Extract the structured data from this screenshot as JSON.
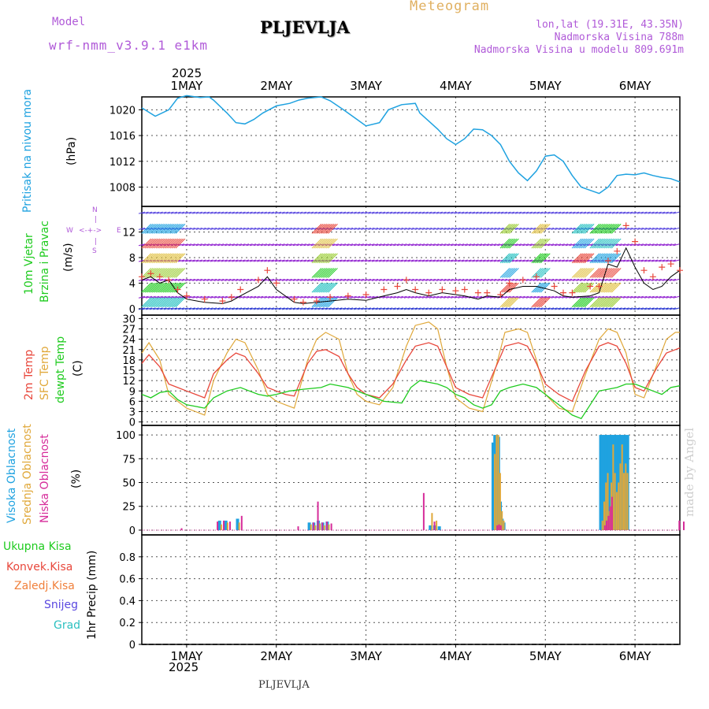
{
  "header": {
    "model_label": "Model",
    "model_name": "wrf-nmm_v3.9.1 e1km",
    "station": "PLJEVLJA",
    "meteogram_label": "Meteogram",
    "lonlat": "lon,lat (19.31E, 43.35N)",
    "elevation": "Nadmorska Visina 788m",
    "model_elevation": "Nadmorska Visina u modelu 809.691m",
    "year_top": "2025",
    "year_bottom": "2025",
    "footer_station": "PLJEVLJA",
    "watermark": "made by Angel"
  },
  "colors": {
    "pressure": "#1fa2e0",
    "temp2m": "#e8473b",
    "sfc": "#e0a83a",
    "dew": "#1ecb1e",
    "high_cloud": "#1fa2e0",
    "mid_cloud": "#e0a83a",
    "low_cloud": "#d62c9a",
    "wind_speed": "#000000",
    "gust": "#e8473b",
    "model_text": "#b05ad8",
    "meteogram_text": "#e0b060",
    "grid": "#555555"
  },
  "axis_labels": {
    "pressure": [
      "Pritisak na nivou mora",
      "(hPa)"
    ],
    "wind": [
      "10m Vjetar",
      "Brzina i Pravac",
      "(m/s)"
    ],
    "wind_compass": [
      "N",
      "W",
      "E",
      "S"
    ],
    "temp": [
      "2m Temp",
      "SFC Temp",
      "dewpt Temp",
      "(C)"
    ],
    "cloud": [
      "Visoka Oblacnost",
      "Srednja Oblacnost",
      "Niska Oblacnost",
      "(%)"
    ],
    "precip": [
      "Ukupna Kisa",
      "Konvek.Kisa",
      "Zaledj.Kisa",
      "Snijeg",
      "Grad",
      "1hr Precip (mm)"
    ]
  },
  "chart_data": [
    {
      "type": "line",
      "panel": "pressure",
      "x_unit": "days since 1 MAY 2025 00UTC",
      "x_categories": [
        "1MAY",
        "2MAY",
        "3MAY",
        "4MAY",
        "5MAY",
        "6MAY"
      ],
      "xlim": [
        -0.5,
        5.5
      ],
      "ylabel": "(hPa)",
      "ylim": [
        1005,
        1022
      ],
      "yticks": [
        1008,
        1012,
        1016,
        1020
      ],
      "series": [
        {
          "name": "Pritisak na nivou mora",
          "x": [
            -0.5,
            -0.35,
            -0.2,
            -0.1,
            0,
            0.15,
            0.25,
            0.3,
            0.45,
            0.55,
            0.65,
            0.75,
            0.85,
            1.0,
            1.15,
            1.25,
            1.35,
            1.5,
            1.6,
            1.75,
            1.9,
            2.0,
            2.15,
            2.25,
            2.4,
            2.55,
            2.6,
            2.8,
            2.9,
            3.0,
            3.1,
            3.2,
            3.3,
            3.4,
            3.5,
            3.6,
            3.7,
            3.8,
            3.9,
            4.0,
            4.1,
            4.2,
            4.3,
            4.4,
            4.5,
            4.6,
            4.7,
            4.8,
            4.9,
            5.0,
            5.1,
            5.2,
            5.3,
            5.4,
            5.5
          ],
          "y": [
            1020.3,
            1019.0,
            1020.0,
            1021.8,
            1022.2,
            1021.9,
            1022.0,
            1021.5,
            1019.5,
            1018.0,
            1017.8,
            1018.5,
            1019.5,
            1020.6,
            1021.0,
            1021.5,
            1021.8,
            1022.0,
            1021.4,
            1020.0,
            1018.5,
            1017.5,
            1018.0,
            1020.0,
            1020.8,
            1021.0,
            1019.5,
            1017.0,
            1015.5,
            1014.6,
            1015.5,
            1017.0,
            1016.9,
            1016.0,
            1014.6,
            1012.0,
            1010.2,
            1009.0,
            1010.5,
            1012.8,
            1013.0,
            1012.0,
            1009.8,
            1008.0,
            1007.5,
            1007.0,
            1008.0,
            1009.8,
            1010.0,
            1009.9,
            1010.2,
            1009.8,
            1009.5,
            1009.3,
            1008.8
          ]
        }
      ]
    },
    {
      "type": "line",
      "panel": "wind",
      "x_unit": "days since 1 MAY 2025 00UTC",
      "xlim": [
        -0.5,
        5.5
      ],
      "ylabel": "(m/s)",
      "ylim": [
        -1,
        16
      ],
      "yticks": [
        0,
        4,
        8,
        12
      ],
      "series": [
        {
          "name": "wind_speed",
          "x": [
            -0.5,
            -0.4,
            -0.3,
            -0.2,
            -0.1,
            0,
            0.2,
            0.4,
            0.5,
            0.6,
            0.8,
            0.9,
            1.0,
            1.2,
            1.3,
            1.45,
            1.6,
            1.8,
            2.0,
            2.2,
            2.35,
            2.45,
            2.55,
            2.7,
            2.85,
            3.0,
            3.1,
            3.25,
            3.35,
            3.5,
            3.6,
            3.75,
            3.9,
            4.1,
            4.2,
            4.3,
            4.5,
            4.6,
            4.7,
            4.8,
            4.9,
            5.0,
            5.1,
            5.2,
            5.3,
            5.4,
            5.5
          ],
          "y": [
            4.5,
            5.0,
            4.0,
            4.5,
            2.5,
            1.5,
            1.0,
            0.8,
            1.2,
            2.0,
            3.5,
            5.0,
            3.0,
            1.0,
            0.8,
            1.0,
            1.2,
            1.5,
            1.3,
            2.0,
            2.5,
            3.0,
            2.5,
            2.0,
            2.5,
            2.2,
            2.0,
            1.5,
            2.0,
            1.8,
            3.0,
            3.5,
            3.5,
            2.8,
            2.0,
            1.8,
            2.0,
            2.5,
            7.0,
            6.5,
            9.5,
            6.5,
            4.0,
            3.0,
            3.5,
            5.0,
            6.0
          ]
        },
        {
          "name": "gust",
          "x": [
            -0.5,
            -0.4,
            -0.3,
            -0.2,
            -0.1,
            0,
            0.2,
            0.4,
            0.5,
            0.6,
            0.8,
            0.9,
            1.0,
            1.2,
            1.3,
            1.45,
            1.6,
            1.8,
            2.0,
            2.2,
            2.35,
            2.45,
            2.55,
            2.7,
            2.85,
            3.0,
            3.1,
            3.25,
            3.35,
            3.5,
            3.6,
            3.75,
            3.9,
            4.1,
            4.2,
            4.3,
            4.5,
            4.6,
            4.7,
            4.8,
            4.9,
            5.0,
            5.1,
            5.2,
            5.3,
            5.4,
            5.5
          ],
          "y": [
            5.0,
            5.5,
            5.0,
            4.5,
            3.0,
            2.0,
            1.5,
            1.2,
            1.8,
            3.0,
            4.5,
            6.0,
            4.0,
            1.5,
            1.0,
            1.2,
            1.8,
            2.0,
            2.2,
            3.0,
            3.5,
            4.5,
            3.0,
            2.5,
            3.0,
            2.8,
            3.0,
            2.5,
            2.5,
            2.2,
            4.0,
            4.5,
            5.0,
            3.5,
            2.5,
            2.5,
            3.5,
            3.5,
            7.5,
            9.0,
            13.0,
            10.5,
            6.0,
            5.0,
            6.5,
            7.0,
            6.0
          ]
        }
      ],
      "wind_barb_rows_ms": [
        0,
        1.8,
        4.5,
        7.5,
        10,
        12.5,
        15
      ],
      "wind_barb_step_days": 0.04
    },
    {
      "type": "line",
      "panel": "temperature",
      "x_unit": "days since 1 MAY 2025 00UTC",
      "xlim": [
        -0.5,
        5.5
      ],
      "ylabel": "(C)",
      "ylim": [
        -1,
        31
      ],
      "yticks": [
        0,
        3,
        6,
        9,
        12,
        15,
        18,
        21,
        24,
        27,
        30
      ],
      "series": [
        {
          "name": "2m Temp",
          "x": [
            -0.5,
            -0.42,
            -0.3,
            -0.2,
            -0.1,
            0,
            0.1,
            0.2,
            0.3,
            0.45,
            0.55,
            0.65,
            0.8,
            0.9,
            1.0,
            1.1,
            1.2,
            1.35,
            1.45,
            1.55,
            1.7,
            1.8,
            1.9,
            2.0,
            2.15,
            2.3,
            2.45,
            2.55,
            2.7,
            2.8,
            2.9,
            3.0,
            3.15,
            3.3,
            3.45,
            3.55,
            3.7,
            3.8,
            3.9,
            4.0,
            4.15,
            4.3,
            4.45,
            4.6,
            4.7,
            4.8,
            4.9,
            5.0,
            5.1,
            5.25,
            5.35,
            5.45,
            5.5
          ],
          "y": [
            17,
            19.5,
            16,
            11,
            10,
            9,
            8,
            7,
            14,
            18,
            20,
            19,
            14,
            10,
            9,
            8,
            7.5,
            17,
            20.5,
            21,
            19,
            14,
            10,
            8,
            7,
            11,
            18,
            22,
            23,
            22,
            16,
            10,
            8,
            7,
            16,
            22,
            23,
            22,
            17,
            11,
            8,
            6,
            15,
            22,
            23,
            22,
            17,
            10,
            9,
            16,
            20,
            21,
            21.5
          ]
        },
        {
          "name": "SFC Temp",
          "x": [
            -0.5,
            -0.42,
            -0.3,
            -0.2,
            -0.1,
            0,
            0.1,
            0.2,
            0.3,
            0.45,
            0.55,
            0.65,
            0.8,
            0.9,
            1.0,
            1.1,
            1.2,
            1.35,
            1.45,
            1.55,
            1.7,
            1.8,
            1.9,
            2.0,
            2.15,
            2.3,
            2.45,
            2.55,
            2.7,
            2.8,
            2.9,
            3.0,
            3.15,
            3.3,
            3.45,
            3.55,
            3.7,
            3.8,
            3.9,
            4.0,
            4.15,
            4.3,
            4.45,
            4.6,
            4.7,
            4.8,
            4.9,
            5.0,
            5.1,
            5.25,
            5.35,
            5.45,
            5.5
          ],
          "y": [
            20,
            23,
            18,
            8,
            6,
            4,
            3,
            2,
            12,
            20,
            24,
            23,
            15,
            8,
            6,
            5,
            4,
            18,
            24,
            26,
            24,
            14,
            8,
            6,
            5,
            10,
            22,
            28,
            29,
            27,
            16,
            7,
            4,
            3,
            16,
            26,
            27,
            26,
            18,
            8,
            4,
            3,
            14,
            24,
            27,
            26,
            20,
            8,
            7,
            17,
            24,
            26,
            26
          ]
        },
        {
          "name": "dewpt Temp",
          "x": [
            -0.5,
            -0.4,
            -0.3,
            -0.2,
            -0.1,
            0,
            0.1,
            0.2,
            0.3,
            0.45,
            0.6,
            0.7,
            0.8,
            0.9,
            1.0,
            1.15,
            1.3,
            1.5,
            1.6,
            1.8,
            1.9,
            2.0,
            2.2,
            2.4,
            2.5,
            2.6,
            2.8,
            2.9,
            3.0,
            3.1,
            3.2,
            3.3,
            3.4,
            3.5,
            3.6,
            3.75,
            3.9,
            4.0,
            4.1,
            4.2,
            4.3,
            4.4,
            4.5,
            4.6,
            4.8,
            4.9,
            5.0,
            5.1,
            5.2,
            5.3,
            5.4,
            5.5
          ],
          "y": [
            8,
            7,
            8.5,
            9,
            6.5,
            5,
            4.5,
            4,
            7,
            9,
            10,
            9,
            8,
            7.5,
            8,
            9,
            9.5,
            10,
            11,
            10,
            9,
            8,
            6,
            5.5,
            10,
            12,
            11,
            10,
            8,
            7,
            5,
            4,
            5,
            9,
            10,
            11,
            10,
            8,
            6,
            4,
            2,
            1,
            5,
            9,
            10,
            11,
            11,
            10,
            9,
            8,
            10,
            10.5
          ]
        }
      ]
    },
    {
      "type": "bar",
      "panel": "cloud",
      "x_unit": "days since 1 MAY 2025 00UTC",
      "xlim": [
        -0.5,
        5.5
      ],
      "ylabel": "(%)",
      "ylim": [
        -5,
        110
      ],
      "yticks": [
        0,
        25,
        50,
        75,
        100
      ],
      "series": [
        {
          "name": "Visoka Oblacnost",
          "x": [
            0.35,
            0.42,
            0.55,
            1.35,
            1.4,
            1.45,
            1.5,
            1.55,
            2.7,
            2.75,
            2.8,
            3.4,
            3.42,
            3.44,
            3.46,
            3.48,
            3.5,
            3.52,
            4.6,
            4.62,
            4.64,
            4.66,
            4.68,
            4.7,
            4.72,
            4.74,
            4.76,
            4.78,
            4.8,
            4.82,
            4.84,
            4.86,
            4.88,
            4.9
          ],
          "y": [
            10,
            10,
            12,
            8,
            8,
            10,
            8,
            9,
            5,
            5,
            4,
            92,
            100,
            100,
            98,
            30,
            12,
            8,
            100,
            100,
            100,
            100,
            100,
            100,
            100,
            100,
            100,
            100,
            100,
            100,
            100,
            100,
            100,
            100
          ]
        },
        {
          "name": "Srednja Oblacnost",
          "x": [
            0.36,
            0.43,
            0.56,
            1.36,
            1.41,
            1.46,
            1.51,
            1.56,
            2.71,
            2.76,
            3.41,
            3.43,
            3.45,
            3.47,
            3.49,
            3.51,
            4.61,
            4.63,
            4.65,
            4.67,
            4.69,
            4.71,
            4.73,
            4.75,
            4.77,
            4.79,
            4.81,
            4.83,
            4.85,
            4.87,
            4.89
          ],
          "y": [
            6,
            8,
            8,
            6,
            5,
            7,
            5,
            6,
            18,
            10,
            80,
            100,
            100,
            60,
            20,
            10,
            10,
            30,
            50,
            60,
            20,
            50,
            90,
            60,
            40,
            50,
            70,
            90,
            60,
            70,
            60
          ]
        },
        {
          "name": "Niska Oblacnost",
          "x": [
            -0.1,
            0.3,
            0.37,
            0.44,
            0.57,
            1.2,
            1.37,
            1.42,
            1.47,
            1.52,
            1.57,
            2.6,
            2.72,
            3.42,
            3.44,
            3.46,
            4.62,
            4.64,
            4.66,
            4.68,
            4.7,
            5.45,
            5.5
          ],
          "y": [
            2,
            9,
            10,
            9,
            15,
            4,
            8,
            30,
            8,
            9,
            7,
            39,
            9,
            5,
            6,
            5,
            5,
            10,
            15,
            25,
            35,
            10,
            9
          ]
        }
      ]
    },
    {
      "type": "line",
      "panel": "precip",
      "x_unit": "days since 1 MAY 2025 00UTC",
      "xlim": [
        -0.5,
        5.5
      ],
      "ylabel": "1hr Precip (mm)",
      "ylim": [
        0,
        1.0
      ],
      "yticks": [
        0,
        0.2,
        0.4,
        0.6,
        0.8
      ],
      "series": [
        {
          "name": "Ukupna Kisa",
          "x": [
            -0.5,
            5.5
          ],
          "y": [
            0,
            0
          ]
        }
      ]
    }
  ]
}
